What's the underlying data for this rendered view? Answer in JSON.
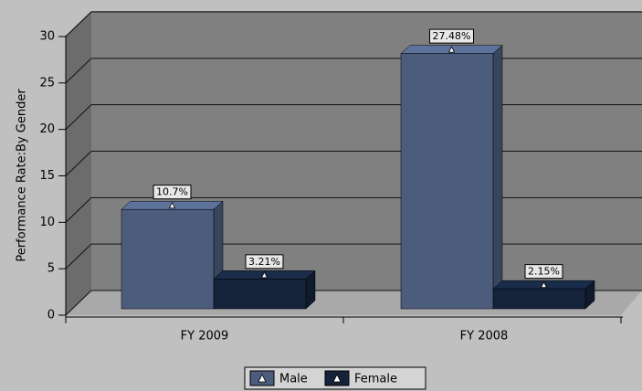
{
  "chart_data": {
    "type": "bar3d",
    "y_label": "Performance Rate:By Gender",
    "categories": [
      "FY 2009",
      "FY 2008"
    ],
    "series": [
      {
        "name": "Male",
        "color": "#4b5c7d",
        "values": [
          10.7,
          27.48
        ],
        "value_labels": [
          "10.7%",
          "27.48%"
        ]
      },
      {
        "name": "Female",
        "color": "#14233a",
        "values": [
          3.21,
          2.15
        ],
        "value_labels": [
          "3.21%",
          "2.15%"
        ]
      }
    ],
    "ylim": [
      0,
      30
    ],
    "yticks": [
      0,
      5,
      10,
      15,
      20,
      25,
      30
    ],
    "grid": true,
    "legend": "bottom"
  }
}
